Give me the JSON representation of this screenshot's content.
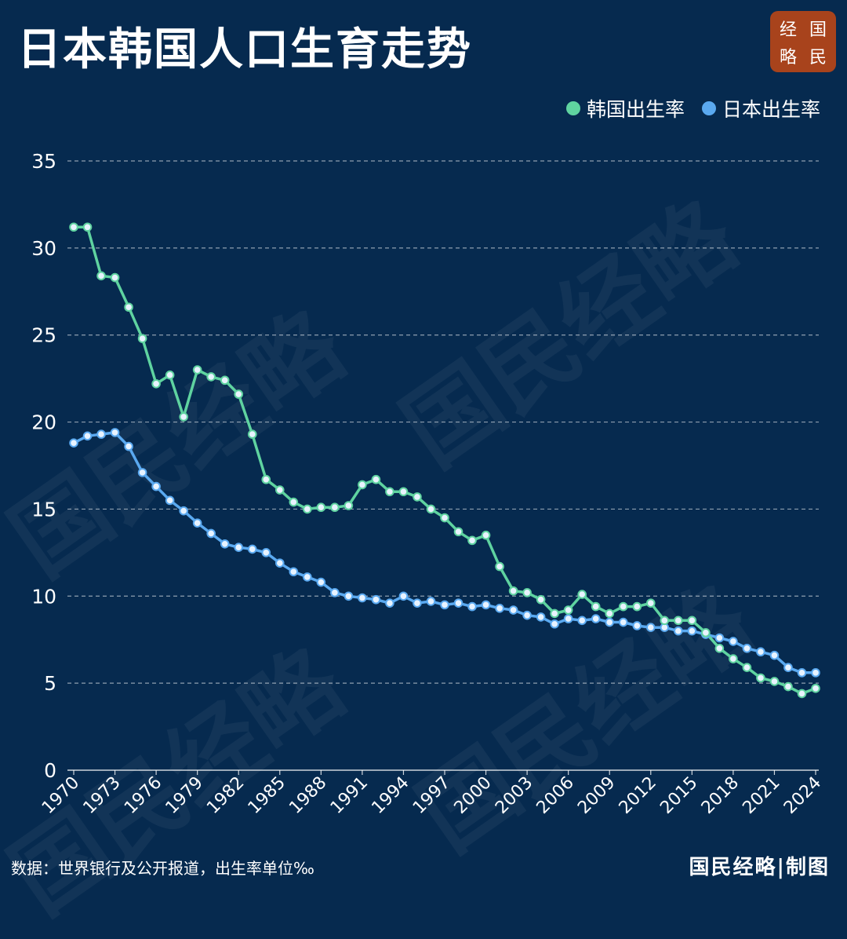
{
  "header": {
    "title": "日本韩国人口生育走势",
    "logo_chars": [
      "经",
      "国",
      "略",
      "民"
    ]
  },
  "watermark_text": "国民经略",
  "footer": {
    "source": "数据：世界银行及公开报道，出生率单位‰",
    "credit": "国民经略|制图"
  },
  "colors": {
    "background": "#062a4f",
    "korea": "#5fd3a0",
    "japan": "#5aa9f0",
    "logo": "#a8431c"
  },
  "chart_data": {
    "type": "line",
    "title": "日本韩国人口生育走势",
    "xlabel": "",
    "ylabel": "",
    "ylim": [
      0,
      35
    ],
    "yticks": [
      0,
      5,
      10,
      15,
      20,
      25,
      30,
      35
    ],
    "grid": "horizontal dashed",
    "legend_position": "top-right",
    "x": [
      1970,
      1971,
      1972,
      1973,
      1974,
      1975,
      1976,
      1977,
      1978,
      1979,
      1980,
      1981,
      1982,
      1983,
      1984,
      1985,
      1986,
      1987,
      1988,
      1989,
      1990,
      1991,
      1992,
      1993,
      1994,
      1995,
      1996,
      1997,
      1998,
      1999,
      2000,
      2001,
      2002,
      2003,
      2004,
      2005,
      2006,
      2007,
      2008,
      2009,
      2010,
      2011,
      2012,
      2013,
      2014,
      2015,
      2016,
      2017,
      2018,
      2019,
      2020,
      2021,
      2022,
      2023,
      2024
    ],
    "xtick_labels": [
      "1970",
      "1973",
      "1976",
      "1979",
      "1982",
      "1985",
      "1988",
      "1991",
      "1994",
      "1997",
      "2000",
      "2003",
      "2006",
      "2009",
      "2012",
      "2015",
      "2018",
      "2021",
      "2024"
    ],
    "series": [
      {
        "name": "韩国出生率",
        "values": [
          31.2,
          31.2,
          28.4,
          28.3,
          26.6,
          24.8,
          22.2,
          22.7,
          20.3,
          23.0,
          22.6,
          22.4,
          21.6,
          19.3,
          16.7,
          16.1,
          15.4,
          15.0,
          15.1,
          15.1,
          15.2,
          16.4,
          16.7,
          16.0,
          16.0,
          15.7,
          15.0,
          14.5,
          13.7,
          13.2,
          13.5,
          11.7,
          10.3,
          10.2,
          9.8,
          9.0,
          9.2,
          10.1,
          9.4,
          9.0,
          9.4,
          9.4,
          9.6,
          8.6,
          8.6,
          8.6,
          7.9,
          7.0,
          6.4,
          5.9,
          5.3,
          5.1,
          4.8,
          4.4,
          4.7
        ]
      },
      {
        "name": "日本出生率",
        "values": [
          18.8,
          19.2,
          19.3,
          19.4,
          18.6,
          17.1,
          16.3,
          15.5,
          14.9,
          14.2,
          13.6,
          13.0,
          12.8,
          12.7,
          12.5,
          11.9,
          11.4,
          11.1,
          10.8,
          10.2,
          10.0,
          9.9,
          9.8,
          9.6,
          10.0,
          9.6,
          9.7,
          9.5,
          9.6,
          9.4,
          9.5,
          9.3,
          9.2,
          8.9,
          8.8,
          8.4,
          8.7,
          8.6,
          8.7,
          8.5,
          8.5,
          8.3,
          8.2,
          8.2,
          8.0,
          8.0,
          7.8,
          7.6,
          7.4,
          7.0,
          6.8,
          6.6,
          5.9,
          5.6,
          5.6
        ]
      }
    ]
  }
}
